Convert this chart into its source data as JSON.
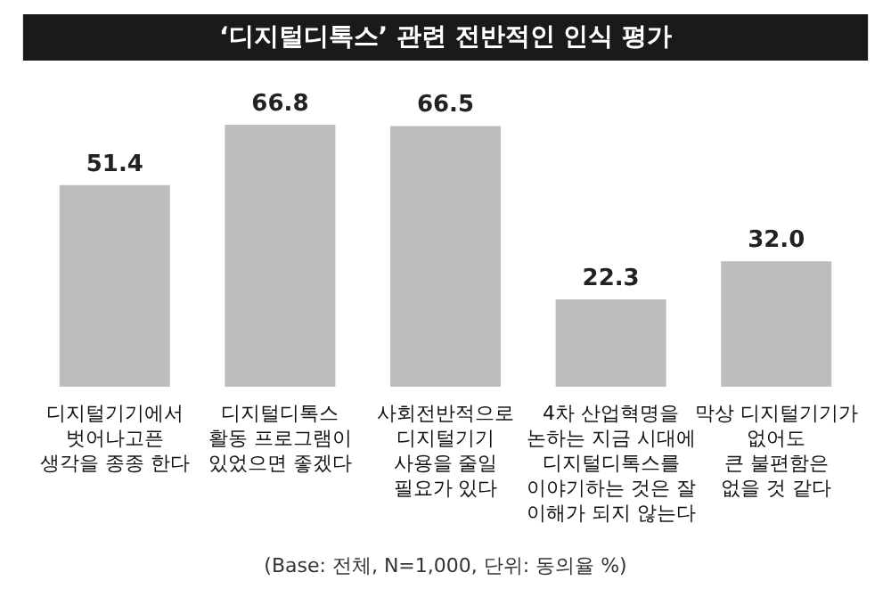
{
  "chart_data": {
    "type": "bar",
    "title": "‘디지털디톡스’ 관련 전반적인 인식 평가",
    "categories": [
      "디지털기기에서\n벗어나고픈\n생각을 종종 한다",
      "디지털디톡스\n활동 프로그램이\n있었으면 좋겠다",
      "사회전반적으로\n디지털기기\n사용을 줄일\n필요가 있다",
      "4차 산업혁명을\n논하는 지금 시대에\n디지털디톡스를\n이야기하는 것은 잘\n이해가 되지 않는다",
      "막상 디지털기기가\n없어도\n큰 불편함은\n없을 것 같다"
    ],
    "values": [
      51.4,
      66.8,
      66.5,
      22.3,
      32.0
    ],
    "value_labels": [
      "51.4",
      "66.8",
      "66.5",
      "22.3",
      "32.0"
    ],
    "color": "#bdbdbd",
    "annotations": [
      "(Base: 전체, N=1,000, 단위: 동의율 %)"
    ]
  }
}
